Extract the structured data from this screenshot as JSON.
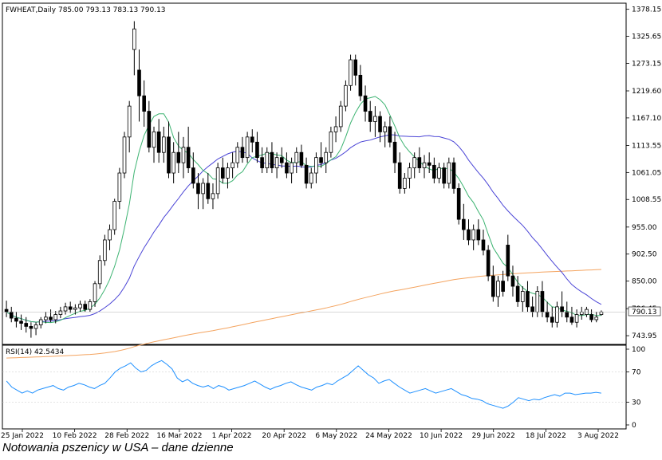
{
  "caption": "Notowania pszenicy w USA – dane dzienne",
  "chart_data": [
    {
      "type": "candlestick",
      "header": "FWHEAT,Daily  785.00 793.13 783.13 790.13",
      "price_axis_labels": [
        "1378.15",
        "1325.65",
        "1273.15",
        "1219.60",
        "1167.10",
        "1113.55",
        "1061.05",
        "1008.55",
        "955.00",
        "902.50",
        "850.00",
        "796.45",
        "743.95"
      ],
      "last_price_label": "790.13",
      "x_tick_labels": [
        "25 Jan 2022",
        "10 Feb 2022",
        "28 Feb 2022",
        "16 Mar 2022",
        "1 Apr 2022",
        "20 Apr 2022",
        "6 May 2022",
        "24 May 2022",
        "10 Jun 2022",
        "29 Jun 2022",
        "18 Jul 2022",
        "3 Aug 2022"
      ],
      "ylim": [
        727,
        1390
      ],
      "candles_note": "o,h,l,c per trading day",
      "candles": [
        [
          795,
          812,
          780,
          790
        ],
        [
          790,
          800,
          770,
          778
        ],
        [
          778,
          790,
          760,
          772
        ],
        [
          772,
          785,
          755,
          768
        ],
        [
          768,
          780,
          750,
          762
        ],
        [
          762,
          770,
          740,
          758
        ],
        [
          758,
          770,
          745,
          765
        ],
        [
          765,
          780,
          758,
          775
        ],
        [
          775,
          790,
          768,
          780
        ],
        [
          780,
          795,
          770,
          775
        ],
        [
          775,
          792,
          768,
          785
        ],
        [
          785,
          800,
          778,
          792
        ],
        [
          792,
          808,
          785,
          800
        ],
        [
          800,
          810,
          788,
          795
        ],
        [
          795,
          805,
          785,
          798
        ],
        [
          798,
          812,
          790,
          805
        ],
        [
          805,
          812,
          790,
          795
        ],
        [
          795,
          815,
          790,
          810
        ],
        [
          810,
          850,
          800,
          845
        ],
        [
          845,
          900,
          835,
          890
        ],
        [
          890,
          940,
          880,
          930
        ],
        [
          930,
          960,
          910,
          950
        ],
        [
          950,
          1010,
          940,
          1005
        ],
        [
          1005,
          1070,
          990,
          1060
        ],
        [
          1060,
          1140,
          1050,
          1130
        ],
        [
          1130,
          1200,
          1100,
          1190
        ],
        [
          1300,
          1355,
          1250,
          1340
        ],
        [
          1260,
          1300,
          1160,
          1210
        ],
        [
          1210,
          1240,
          1150,
          1180
        ],
        [
          1180,
          1200,
          1100,
          1110
        ],
        [
          1110,
          1150,
          1080,
          1140
        ],
        [
          1140,
          1165,
          1080,
          1100
        ],
        [
          1100,
          1150,
          1080,
          1130
        ],
        [
          1130,
          1160,
          1050,
          1060
        ],
        [
          1060,
          1120,
          1040,
          1100
        ],
        [
          1100,
          1140,
          1060,
          1080
        ],
        [
          1080,
          1130,
          1050,
          1110
        ],
        [
          1110,
          1150,
          1060,
          1070
        ],
        [
          1070,
          1100,
          1030,
          1040
        ],
        [
          1040,
          1060,
          990,
          1020
        ],
        [
          1020,
          1050,
          990,
          1040
        ],
        [
          1040,
          1060,
          1000,
          1010
        ],
        [
          1010,
          1040,
          990,
          1020
        ],
        [
          1020,
          1080,
          1010,
          1070
        ],
        [
          1070,
          1090,
          1040,
          1050
        ],
        [
          1050,
          1080,
          1030,
          1070
        ],
        [
          1070,
          1100,
          1050,
          1080
        ],
        [
          1080,
          1120,
          1070,
          1110
        ],
        [
          1110,
          1130,
          1080,
          1090
        ],
        [
          1090,
          1140,
          1080,
          1130
        ],
        [
          1130,
          1145,
          1100,
          1120
        ],
        [
          1120,
          1140,
          1080,
          1090
        ],
        [
          1090,
          1110,
          1060,
          1070
        ],
        [
          1070,
          1110,
          1060,
          1100
        ],
        [
          1100,
          1120,
          1060,
          1070
        ],
        [
          1070,
          1100,
          1050,
          1090
        ],
        [
          1090,
          1110,
          1070,
          1080
        ],
        [
          1080,
          1100,
          1050,
          1060
        ],
        [
          1060,
          1090,
          1040,
          1080
        ],
        [
          1080,
          1110,
          1060,
          1100
        ],
        [
          1100,
          1115,
          1070,
          1075
        ],
        [
          1075,
          1090,
          1030,
          1040
        ],
        [
          1040,
          1070,
          1030,
          1060
        ],
        [
          1060,
          1100,
          1040,
          1090
        ],
        [
          1090,
          1120,
          1070,
          1080
        ],
        [
          1080,
          1110,
          1060,
          1100
        ],
        [
          1100,
          1150,
          1090,
          1140
        ],
        [
          1140,
          1170,
          1120,
          1150
        ],
        [
          1150,
          1200,
          1140,
          1190
        ],
        [
          1190,
          1240,
          1180,
          1230
        ],
        [
          1230,
          1290,
          1220,
          1280
        ],
        [
          1280,
          1290,
          1230,
          1250
        ],
        [
          1250,
          1270,
          1200,
          1210
        ],
        [
          1210,
          1230,
          1160,
          1180
        ],
        [
          1180,
          1200,
          1140,
          1160
        ],
        [
          1160,
          1190,
          1130,
          1170
        ],
        [
          1170,
          1180,
          1120,
          1140
        ],
        [
          1140,
          1160,
          1110,
          1150
        ],
        [
          1150,
          1170,
          1110,
          1120
        ],
        [
          1120,
          1140,
          1060,
          1080
        ],
        [
          1080,
          1100,
          1020,
          1030
        ],
        [
          1030,
          1060,
          1020,
          1050
        ],
        [
          1050,
          1080,
          1030,
          1070
        ],
        [
          1070,
          1100,
          1050,
          1090
        ],
        [
          1090,
          1110,
          1060,
          1070
        ],
        [
          1070,
          1095,
          1050,
          1080
        ],
        [
          1080,
          1100,
          1060,
          1075
        ],
        [
          1075,
          1090,
          1040,
          1050
        ],
        [
          1050,
          1080,
          1040,
          1070
        ],
        [
          1070,
          1080,
          1030,
          1040
        ],
        [
          1040,
          1090,
          1030,
          1080
        ],
        [
          1080,
          1090,
          1020,
          1030
        ],
        [
          1030,
          1040,
          960,
          970
        ],
        [
          970,
          1000,
          930,
          950
        ],
        [
          950,
          970,
          920,
          930
        ],
        [
          930,
          960,
          910,
          950
        ],
        [
          950,
          970,
          920,
          930
        ],
        [
          930,
          950,
          900,
          910
        ],
        [
          910,
          920,
          850,
          860
        ],
        [
          860,
          880,
          810,
          820
        ],
        [
          820,
          860,
          800,
          850
        ],
        [
          850,
          870,
          820,
          830
        ],
        [
          920,
          940,
          850,
          860
        ],
        [
          860,
          880,
          820,
          840
        ],
        [
          840,
          860,
          800,
          810
        ],
        [
          810,
          840,
          790,
          830
        ],
        [
          830,
          850,
          790,
          800
        ],
        [
          800,
          820,
          780,
          790
        ],
        [
          790,
          840,
          780,
          830
        ],
        [
          830,
          850,
          780,
          790
        ],
        [
          790,
          810,
          770,
          780
        ],
        [
          780,
          800,
          760,
          770
        ],
        [
          770,
          810,
          760,
          800
        ],
        [
          800,
          830,
          780,
          790
        ],
        [
          790,
          810,
          770,
          780
        ],
        [
          780,
          800,
          765,
          770
        ],
        [
          770,
          795,
          760,
          785
        ],
        [
          785,
          800,
          775,
          790
        ],
        [
          785,
          800,
          780,
          795
        ],
        [
          785,
          795,
          770,
          775
        ],
        [
          775,
          790,
          770,
          780
        ],
        [
          785,
          793,
          783,
          790
        ]
      ],
      "ma_fast_name": "",
      "ma_mid_name": "",
      "ma_slow_name": ""
    },
    {
      "type": "line",
      "title": "RSI(14) 42.5434",
      "ylim": [
        0,
        100
      ],
      "y_tick_labels": [
        "100",
        "70",
        "30",
        "0"
      ],
      "y_ticks": [
        100,
        70,
        30,
        0
      ],
      "values": [
        58,
        50,
        46,
        42,
        45,
        42,
        46,
        48,
        50,
        52,
        48,
        46,
        50,
        52,
        55,
        53,
        50,
        48,
        52,
        55,
        62,
        70,
        75,
        78,
        82,
        75,
        70,
        72,
        78,
        82,
        85,
        80,
        74,
        62,
        57,
        60,
        55,
        52,
        50,
        52,
        48,
        52,
        50,
        46,
        48,
        50,
        52,
        55,
        58,
        54,
        50,
        47,
        50,
        52,
        55,
        57,
        53,
        50,
        48,
        46,
        50,
        52,
        55,
        53,
        58,
        62,
        66,
        72,
        78,
        72,
        66,
        62,
        55,
        58,
        60,
        55,
        50,
        46,
        42,
        44,
        46,
        48,
        45,
        42,
        44,
        46,
        48,
        44,
        40,
        38,
        35,
        34,
        32,
        28,
        26,
        24,
        22,
        25,
        30,
        36,
        34,
        32,
        34,
        33,
        36,
        38,
        40,
        38,
        42,
        42,
        40,
        41,
        42,
        42,
        43,
        42
      ]
    }
  ]
}
